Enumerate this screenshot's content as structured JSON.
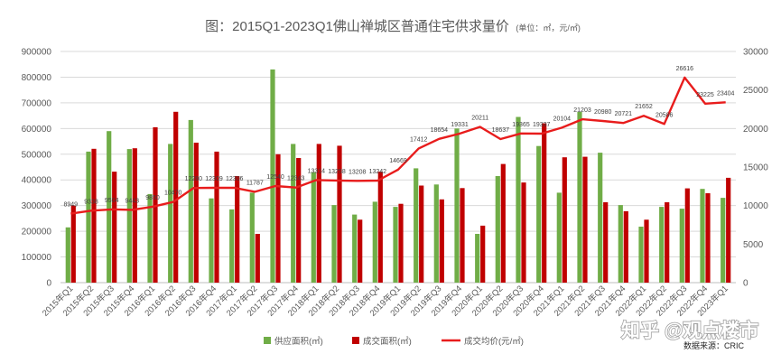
{
  "source": "数据来源：CRIC",
  "watermark": "知乎 @观点楼市",
  "colors": {
    "supply": "#70ad47",
    "deal": "#c00000",
    "price": "#e81c1c",
    "grid": "#d9d9d9",
    "axis": "#bfbfbf"
  },
  "chart_data": {
    "type": "bar",
    "title": "图：2015Q1-2023Q1佛山禅城区普通住宅供求量价",
    "subtitle": "(单位：㎡，元/㎡)",
    "categories": [
      "2015年Q1",
      "2015年Q2",
      "2015年Q3",
      "2015年Q4",
      "2016年Q1",
      "2016年Q2",
      "2016年Q3",
      "2016年Q4",
      "2017年Q1",
      "2017年Q2",
      "2017年Q3",
      "2017年Q4",
      "2018年Q1",
      "2018年Q2",
      "2018年Q3",
      "2018年Q4",
      "2019年Q1",
      "2019年Q2",
      "2019年Q3",
      "2019年Q4",
      "2020年Q1",
      "2020年Q2",
      "2020年Q3",
      "2020年Q4",
      "2021年Q1",
      "2021年Q2",
      "2021年Q3",
      "2021年Q4",
      "2022年Q1",
      "2022年Q2",
      "2022年Q3",
      "2022年Q4",
      "2023年Q1"
    ],
    "series": [
      {
        "name": "供应面积(㎡)",
        "type": "bar",
        "axis": "left",
        "values": [
          215000,
          510000,
          590000,
          520000,
          345000,
          540000,
          633000,
          328000,
          285000,
          350000,
          830000,
          540000,
          430000,
          302000,
          265000,
          315000,
          295000,
          445000,
          382000,
          600000,
          190000,
          415000,
          645000,
          532000,
          350000,
          665000,
          506000,
          302000,
          218000,
          295000,
          288000,
          365000,
          330000
        ]
      },
      {
        "name": "成交面积(㎡)",
        "type": "bar",
        "axis": "left",
        "values": [
          300000,
          521000,
          432000,
          523000,
          605000,
          665000,
          545000,
          510000,
          415000,
          190000,
          500000,
          485000,
          540000,
          533000,
          245000,
          432000,
          307000,
          378000,
          324000,
          368000,
          222000,
          462000,
          390000,
          620000,
          488000,
          490000,
          313000,
          278000,
          245000,
          313000,
          367000,
          348000,
          408000
        ]
      },
      {
        "name": "成交均价(元/㎡)",
        "type": "line",
        "axis": "right",
        "values": [
          8949,
          9338,
          9504,
          9443,
          9850,
          10470,
          12280,
          12309,
          12306,
          11787,
          12540,
          12343,
          13314,
          13258,
          13208,
          13242,
          14669,
          17412,
          18654,
          19331,
          20211,
          18637,
          19365,
          19337,
          20104,
          21203,
          20980,
          20721,
          21652,
          20586,
          26616,
          23225,
          23404
        ]
      }
    ],
    "y_axis": {
      "lim": [
        0,
        900000
      ],
      "ticks": [
        0,
        100000,
        200000,
        300000,
        400000,
        500000,
        600000,
        700000,
        800000,
        900000
      ]
    },
    "y2_axis": {
      "lim": [
        0,
        30000
      ],
      "ticks": [
        0,
        5000,
        10000,
        15000,
        20000,
        25000,
        30000
      ]
    },
    "grid": true,
    "legend": "bottom"
  }
}
